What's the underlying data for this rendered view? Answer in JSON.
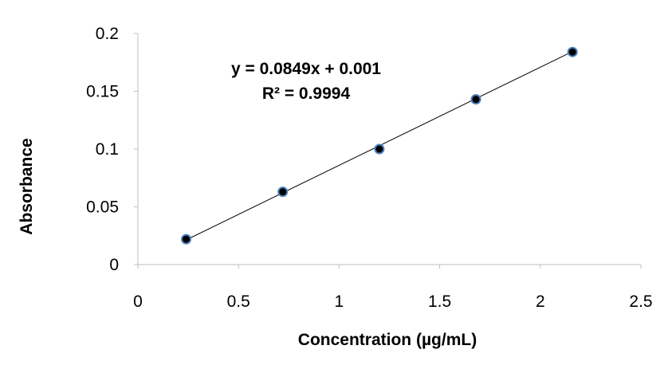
{
  "chart_data": {
    "type": "scatter",
    "title": "",
    "xlabel": "Concentration (µg/mL)",
    "ylabel": "Absorbance",
    "xlim": [
      0,
      2.5
    ],
    "ylim": [
      0,
      0.2
    ],
    "x_ticks": [
      "0",
      "0.5",
      "1",
      "1.5",
      "2",
      "2.5"
    ],
    "y_ticks": [
      "0",
      "0.05",
      "0.1",
      "0.15",
      "0.2"
    ],
    "grid": false,
    "legend": "none",
    "series": [
      {
        "x": [
          0.24,
          0.72,
          1.2,
          1.68,
          2.16
        ],
        "y": [
          0.022,
          0.063,
          0.1,
          0.143,
          0.184
        ],
        "marker_fill": "#000000",
        "marker_edge": "#4a7ebb"
      }
    ],
    "trendline": {
      "type": "linear",
      "slope": 0.0849,
      "intercept": 0.001,
      "color": "#000000"
    },
    "annotations": [
      "y = 0.0849x + 0.001",
      "R² = 0.9994"
    ]
  }
}
